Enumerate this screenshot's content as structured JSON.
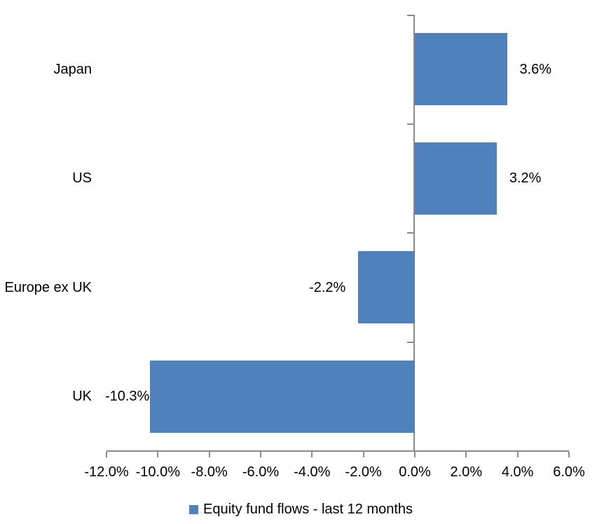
{
  "chart_data": {
    "type": "bar",
    "orientation": "horizontal",
    "categories": [
      "Japan",
      "US",
      "Europe ex UK",
      "UK"
    ],
    "values": [
      3.6,
      3.2,
      -2.2,
      -10.3
    ],
    "value_labels": [
      "3.6%",
      "3.2%",
      "-2.2%",
      "-10.3%"
    ],
    "series": [
      {
        "name": "Equity fund flows - last 12 months",
        "values": [
          3.6,
          3.2,
          -2.2,
          -10.3
        ]
      }
    ],
    "title": "",
    "xlabel": "",
    "ylabel": "",
    "xlim": [
      -12,
      6
    ],
    "xticks": {
      "values": [
        -12,
        -10,
        -8,
        -6,
        -4,
        -2,
        0,
        2,
        4,
        6
      ],
      "labels": [
        "-12.0%",
        "-10.0%",
        "-8.0%",
        "-6.0%",
        "-4.0%",
        "-2.0%",
        "0.0%",
        "2.0%",
        "4.0%",
        "6.0%"
      ]
    },
    "grid": "off",
    "legend": {
      "position": "bottom",
      "label": "Equity fund flows - last 12 months",
      "marker_color": "#4F81BD"
    },
    "colors": {
      "bar": "#4F81BD",
      "axis": "#8A8A8A",
      "text": "#000000",
      "background": "#FFFFFF"
    }
  }
}
